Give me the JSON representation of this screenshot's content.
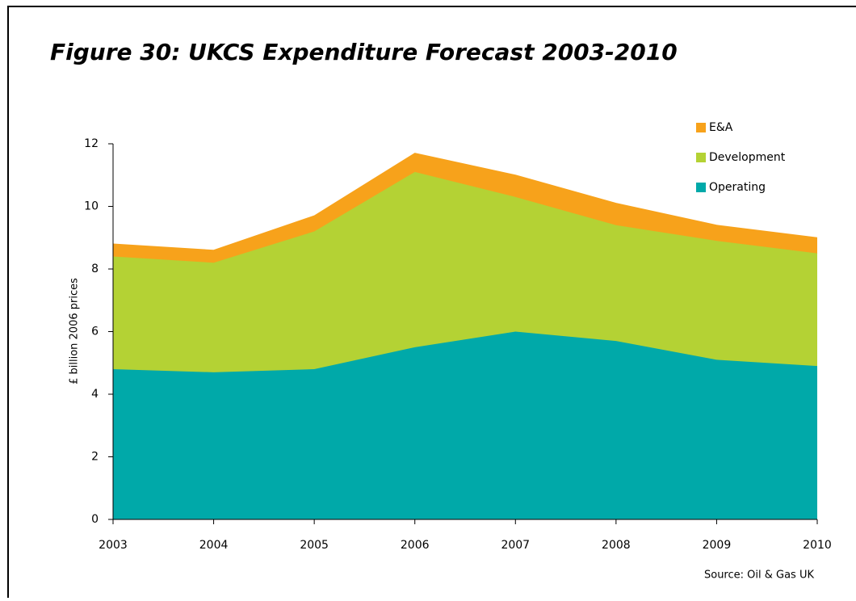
{
  "chart_data": {
    "type": "stacked_area",
    "title": "Figure 30: UKCS Expenditure Forecast 2003-2010",
    "y_label": "£ billion 2006 prices",
    "source": "Source: Oil & Gas UK",
    "x": [
      2003,
      2004,
      2005,
      2006,
      2007,
      2008,
      2009,
      2010
    ],
    "xlim": [
      2003,
      2010
    ],
    "xticks": [
      2003,
      2004,
      2005,
      2006,
      2007,
      2008,
      2009,
      2010
    ],
    "ylim": [
      0,
      12
    ],
    "yticks": [
      0,
      2,
      4,
      6,
      8,
      10,
      12
    ],
    "legend": "top-right",
    "series": [
      {
        "name": "Operating",
        "color": "#00a9a9",
        "values": [
          4.8,
          4.7,
          4.8,
          5.5,
          6.0,
          5.7,
          5.1,
          4.9
        ]
      },
      {
        "name": "Development",
        "color": "#b4d234",
        "values": [
          3.6,
          3.5,
          4.4,
          5.6,
          4.3,
          3.7,
          3.8,
          3.6
        ]
      },
      {
        "name": "E&A",
        "color": "#f7a21b",
        "values": [
          0.4,
          0.4,
          0.5,
          0.6,
          0.7,
          0.7,
          0.5,
          0.5
        ]
      }
    ]
  }
}
